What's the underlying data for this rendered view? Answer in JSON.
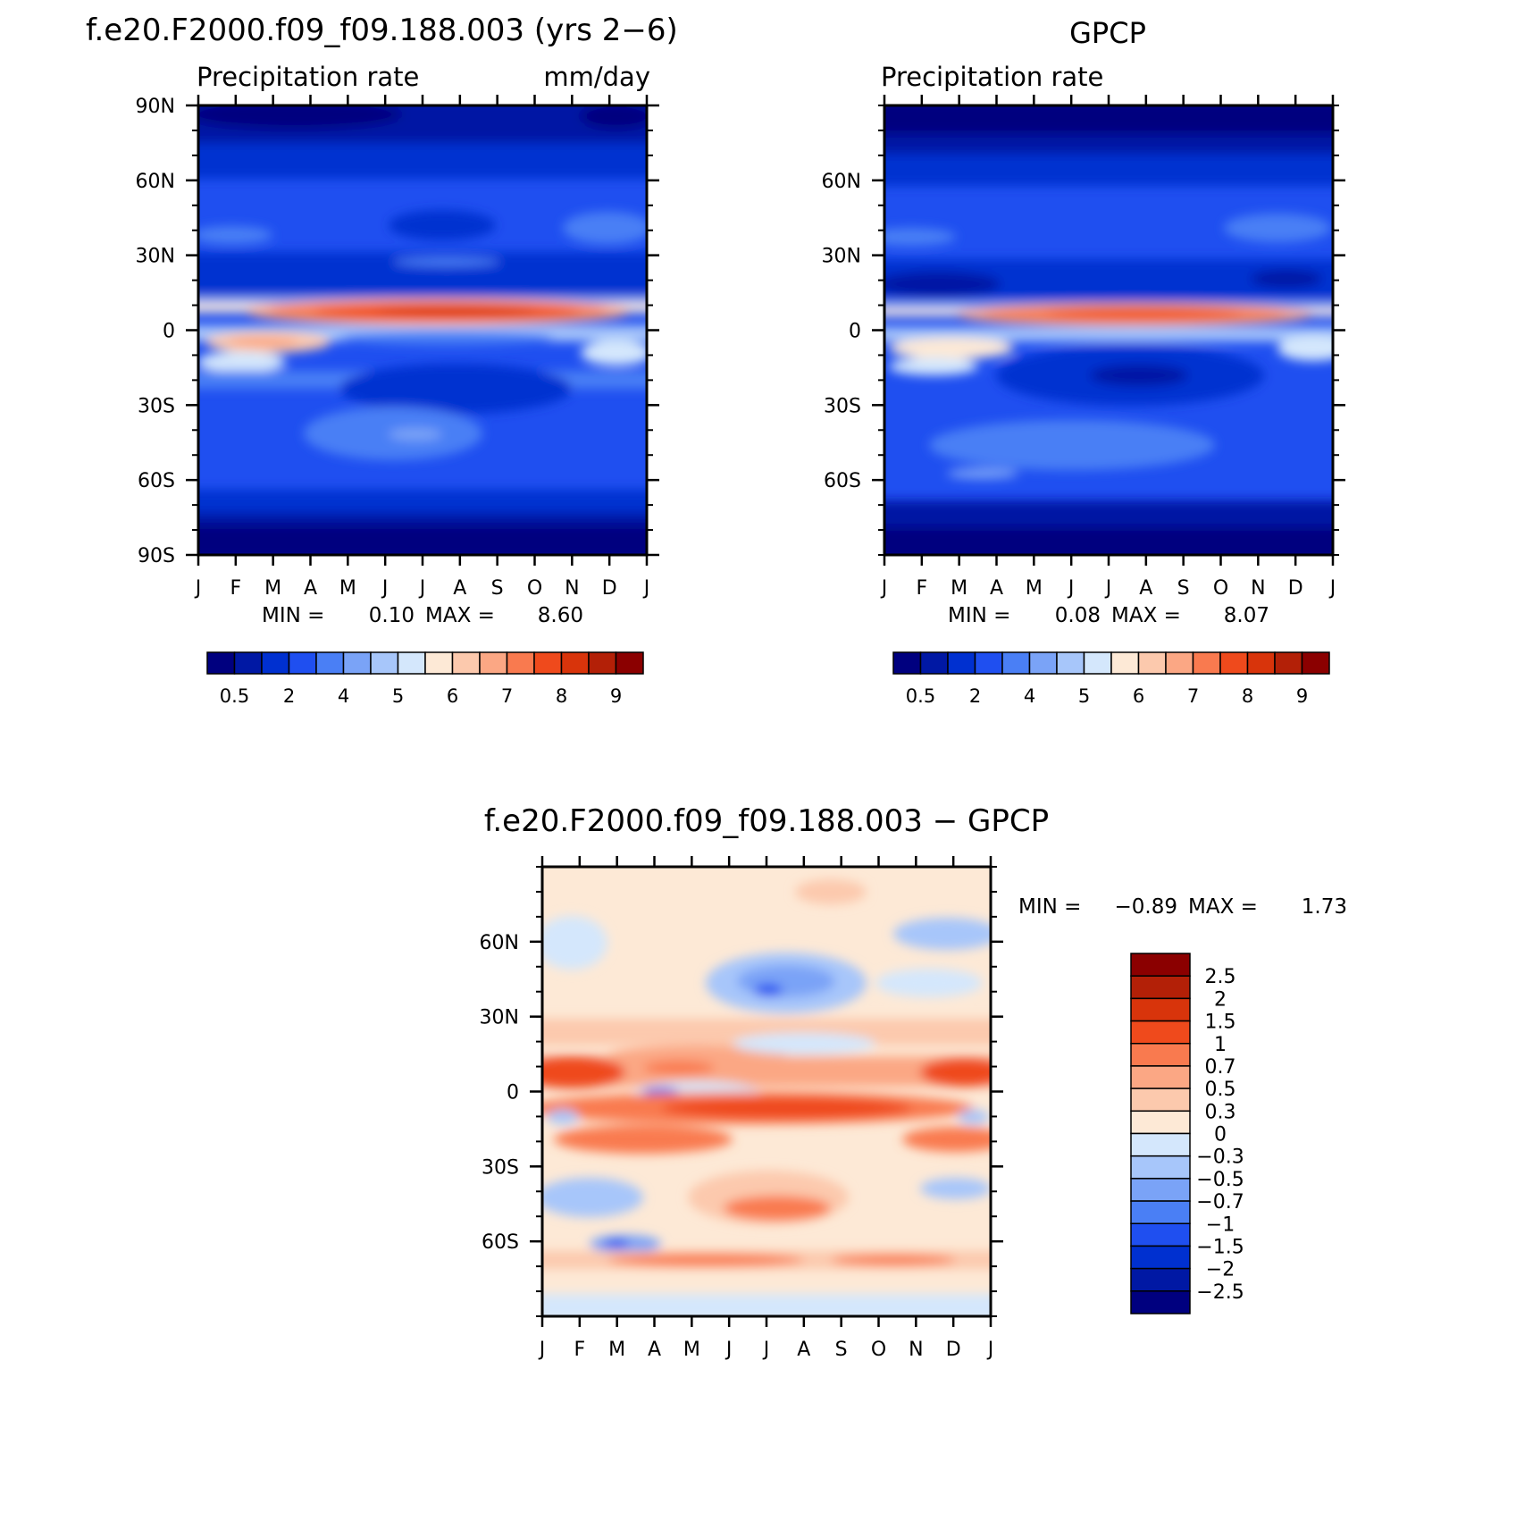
{
  "chart_data": [
    {
      "type": "heatmap",
      "panel": "model",
      "title": "f.e20.F2000.f09_f09.188.003 (yrs 2−6)",
      "subtitle_left": "Precipitation rate",
      "subtitle_right": "mm/day",
      "x_ticks": [
        "J",
        "F",
        "M",
        "A",
        "M",
        "J",
        "J",
        "A",
        "S",
        "O",
        "N",
        "D",
        "J"
      ],
      "y_ticks": [
        "90N",
        "60N",
        "30N",
        "0",
        "30S",
        "60S",
        "90S"
      ],
      "ylim": [
        -90,
        90
      ],
      "min_label": "MIN =",
      "min_value": "0.10",
      "max_label": "MAX =",
      "max_value": "8.60",
      "colorbar": {
        "colors": [
          "#00007f",
          "#0018a4",
          "#0030d0",
          "#1f4ff0",
          "#4a7ff5",
          "#7aa3f7",
          "#a7c6fa",
          "#d4e7fc",
          "#fde9d6",
          "#fcc9ad",
          "#fba784",
          "#f97a4f",
          "#ef4a1c",
          "#d8340b",
          "#b32007",
          "#8b0000"
        ],
        "labels": [
          "0.5",
          "2",
          "4",
          "5",
          "6",
          "7",
          "8",
          "9"
        ]
      }
    },
    {
      "type": "heatmap",
      "panel": "obs",
      "title": "GPCP",
      "subtitle_left": "Precipitation rate",
      "subtitle_right": "",
      "x_ticks": [
        "J",
        "F",
        "M",
        "A",
        "M",
        "J",
        "J",
        "A",
        "S",
        "O",
        "N",
        "D",
        "J"
      ],
      "y_ticks": [
        "60N",
        "30N",
        "0",
        "30S",
        "60S"
      ],
      "ylim": [
        -90,
        90
      ],
      "min_label": "MIN =",
      "min_value": "0.08",
      "max_label": "MAX =",
      "max_value": "8.07",
      "colorbar": {
        "colors": [
          "#00007f",
          "#0018a4",
          "#0030d0",
          "#1f4ff0",
          "#4a7ff5",
          "#7aa3f7",
          "#a7c6fa",
          "#d4e7fc",
          "#fde9d6",
          "#fcc9ad",
          "#fba784",
          "#f97a4f",
          "#ef4a1c",
          "#d8340b",
          "#b32007",
          "#8b0000"
        ],
        "labels": [
          "0.5",
          "2",
          "4",
          "5",
          "6",
          "7",
          "8",
          "9"
        ]
      }
    },
    {
      "type": "heatmap",
      "panel": "diff",
      "title": "f.e20.F2000.f09_f09.188.003 − GPCP",
      "x_ticks": [
        "J",
        "F",
        "M",
        "A",
        "M",
        "J",
        "J",
        "A",
        "S",
        "O",
        "N",
        "D",
        "J"
      ],
      "y_ticks": [
        "60N",
        "30N",
        "0",
        "30S",
        "60S"
      ],
      "ylim": [
        -90,
        90
      ],
      "min_label": "MIN =",
      "min_value": "−0.89",
      "max_label": "MAX =",
      "max_value": "1.73",
      "colorbar": {
        "colors": [
          "#8b0000",
          "#b32007",
          "#d8340b",
          "#ef4a1c",
          "#f97a4f",
          "#fba784",
          "#fcc9ad",
          "#fde9d6",
          "#d4e7fc",
          "#a7c6fa",
          "#7aa3f7",
          "#4a7ff5",
          "#1f4ff0",
          "#0030d0",
          "#0018a4",
          "#00007f"
        ],
        "labels": [
          "2.5",
          "2",
          "1.5",
          "1",
          "0.7",
          "0.5",
          "0.3",
          "0",
          "−0.3",
          "−0.5",
          "−0.7",
          "−1",
          "−1.5",
          "−2",
          "−2.5"
        ]
      }
    }
  ]
}
